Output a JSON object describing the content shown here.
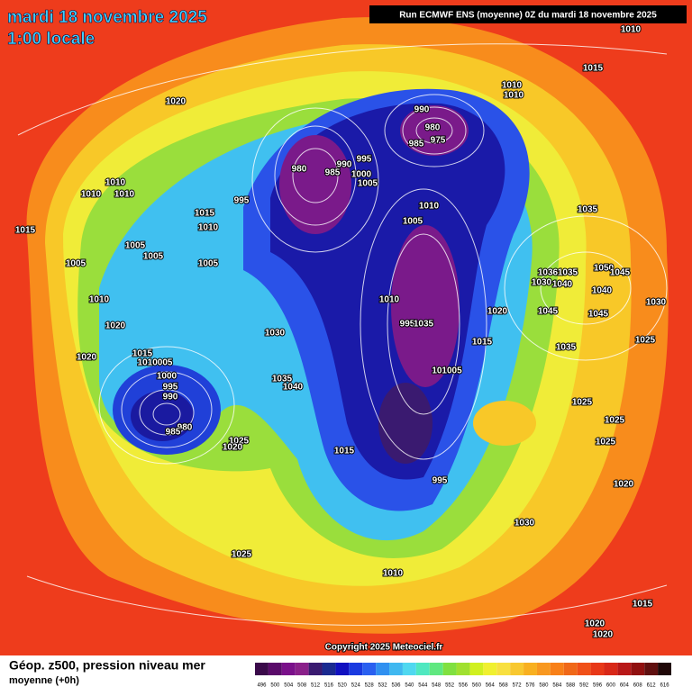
{
  "header": {
    "date": "mardi 18 novembre 2025",
    "time": "1:00 locale",
    "run": "Run ECMWF ENS (moyenne) 0Z du mardi 18 novembre 2025"
  },
  "copyright": "Copyright 2025 Meteociel.fr",
  "footer": {
    "title": "Géop. z500, pression niveau mer",
    "subtitle": "moyenne  (+0h)"
  },
  "legend": {
    "values": [
      496,
      500,
      504,
      508,
      512,
      516,
      520,
      524,
      528,
      532,
      536,
      540,
      544,
      548,
      552,
      556,
      560,
      564,
      568,
      572,
      576,
      580,
      584,
      588,
      592,
      596,
      600,
      604,
      608,
      612,
      616
    ],
    "colors": [
      "#3a0a4a",
      "#5a0a6a",
      "#7a108a",
      "#8a208a",
      "#3a1a70",
      "#1a2a90",
      "#1010c0",
      "#1a3ae0",
      "#2a60f0",
      "#3090f0",
      "#40b8f0",
      "#50d8f0",
      "#50e8c0",
      "#60e880",
      "#80e040",
      "#a0e030",
      "#d0f020",
      "#f0f030",
      "#f8e040",
      "#f8c830",
      "#f8b020",
      "#f89820",
      "#f88018",
      "#f06818",
      "#f05018",
      "#e83818",
      "#d82818",
      "#b81818",
      "#901010",
      "#601010",
      "#200808"
    ]
  },
  "isobar_labels": [
    "1010",
    "1015",
    "1020",
    "1010",
    "1010",
    "990",
    "980",
    "975",
    "985",
    "995",
    "990",
    "980",
    "985",
    "1000",
    "1005",
    "1010",
    "1010",
    "1010",
    "995",
    "1010",
    "1035",
    "1015",
    "1010",
    "1005",
    "1015",
    "1005",
    "1005",
    "1005",
    "1005",
    "1036",
    "1035",
    "1050",
    "1045",
    "1030",
    "1040",
    "1040",
    "1010",
    "1010",
    "1030",
    "1020",
    "1045",
    "1045",
    "1020",
    "995",
    "1035",
    "1030",
    "1015",
    "1025",
    "1035",
    "1020",
    "1015",
    "1010005",
    "1000",
    "101005",
    "1035",
    "1040",
    "995",
    "990",
    "1025",
    "1025",
    "980",
    "985",
    "1025",
    "1025",
    "1020",
    "1015",
    "995",
    "1020",
    "1030",
    "1025",
    "1010",
    "1015",
    "1020",
    "1020"
  ]
}
